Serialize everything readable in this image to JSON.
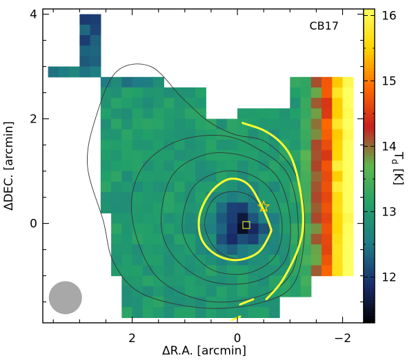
{
  "chart_data": {
    "type": "heatmap",
    "annotation": "CB17",
    "xlabel": "ΔR.A. [arcmin]",
    "ylabel": "ΔDEC. [arcmin]",
    "colorbar_label": "T_d [K]",
    "colorbar_label_main": "T",
    "colorbar_label_sub": "d",
    "colorbar_label_unit": "[K]",
    "xlim": [
      3.7,
      -2.4
    ],
    "ylim": [
      -1.9,
      4.1
    ],
    "x_ticks": [
      {
        "value": 2,
        "label": "2"
      },
      {
        "value": 0,
        "label": "0"
      },
      {
        "value": -2,
        "label": "−2"
      }
    ],
    "y_ticks": [
      {
        "value": 4,
        "label": "4"
      },
      {
        "value": 2,
        "label": "2"
      },
      {
        "value": 0,
        "label": "0"
      }
    ],
    "colorbar": {
      "range": [
        11.3,
        16.1
      ],
      "ticks": [
        {
          "value": 16,
          "label": "16"
        },
        {
          "value": 15,
          "label": "15"
        },
        {
          "value": 14,
          "label": "14"
        },
        {
          "value": 13,
          "label": "13"
        },
        {
          "value": 12,
          "label": "12"
        }
      ],
      "colormap": [
        "#000000",
        "#1b2e6e",
        "#1f7a85",
        "#22a06a",
        "#5fb84e",
        "#c71f1f",
        "#ff6a00",
        "#ffd400",
        "#ffff60"
      ]
    },
    "markers": {
      "star": {
        "x": -0.5,
        "y": 0.32,
        "color": "#ffcc00"
      },
      "square": {
        "x": -0.17,
        "y": -0.03,
        "color": "#e0e020"
      }
    },
    "beam": {
      "x": 3.27,
      "y": -1.42,
      "color": "#a8a8a8"
    },
    "yellow_contours": [
      [
        [
          -0.62,
          -0.05
        ],
        [
          -0.45,
          0.35
        ],
        [
          -0.2,
          0.75
        ],
        [
          0.15,
          0.85
        ],
        [
          0.5,
          0.6
        ],
        [
          0.72,
          0.15
        ],
        [
          0.68,
          -0.3
        ],
        [
          0.4,
          -0.6
        ],
        [
          0.0,
          -0.7
        ],
        [
          -0.4,
          -0.55
        ],
        [
          -0.62,
          -0.2
        ]
      ],
      [
        [
          -0.1,
          1.92
        ],
        [
          -0.5,
          1.78
        ],
        [
          -0.82,
          1.55
        ],
        [
          -1.05,
          1.2
        ],
        [
          -1.2,
          0.6
        ],
        [
          -1.25,
          0.0
        ],
        [
          -1.15,
          -0.5
        ],
        [
          -0.85,
          -1.1
        ],
        [
          -0.55,
          -1.45
        ]
      ],
      [
        [
          -0.3,
          -1.45
        ],
        [
          -0.05,
          -1.55
        ]
      ],
      [
        [
          0.1,
          -1.85
        ],
        [
          -0.05,
          -1.78
        ]
      ]
    ],
    "grey_contours": [
      [
        [
          0.62,
          -0.05
        ],
        [
          0.5,
          0.4
        ],
        [
          0.2,
          0.6
        ],
        [
          -0.2,
          0.55
        ],
        [
          -0.5,
          0.25
        ],
        [
          -0.6,
          -0.15
        ],
        [
          -0.4,
          -0.55
        ],
        [
          0.0,
          -0.68
        ],
        [
          0.4,
          -0.5
        ]
      ],
      [
        [
          1.05,
          0.0
        ],
        [
          0.85,
          0.68
        ],
        [
          0.35,
          0.98
        ],
        [
          -0.2,
          0.95
        ],
        [
          -0.65,
          0.62
        ],
        [
          -0.85,
          0.0
        ],
        [
          -0.72,
          -0.62
        ],
        [
          -0.2,
          -0.95
        ],
        [
          0.45,
          -0.9
        ],
        [
          0.9,
          -0.5
        ]
      ],
      [
        [
          1.45,
          0.0
        ],
        [
          1.25,
          0.9
        ],
        [
          0.6,
          1.32
        ],
        [
          -0.15,
          1.28
        ],
        [
          -0.75,
          0.9
        ],
        [
          -1.0,
          0.1
        ],
        [
          -0.9,
          -0.72
        ],
        [
          -0.3,
          -1.12
        ],
        [
          0.55,
          -1.1
        ],
        [
          1.2,
          -0.65
        ]
      ],
      [
        [
          2.0,
          0.1
        ],
        [
          1.85,
          1.0
        ],
        [
          1.2,
          1.55
        ],
        [
          0.3,
          1.68
        ],
        [
          -0.4,
          1.42
        ],
        [
          -0.95,
          0.95
        ],
        [
          -1.15,
          0.1
        ],
        [
          -1.05,
          -0.9
        ],
        [
          -0.45,
          -1.38
        ],
        [
          0.6,
          -1.48
        ],
        [
          1.55,
          -1.0
        ]
      ],
      [
        [
          2.55,
          0.05
        ],
        [
          2.85,
          1.1
        ],
        [
          2.7,
          2.0
        ],
        [
          2.3,
          2.9
        ],
        [
          1.65,
          3.0
        ],
        [
          1.05,
          2.4
        ],
        [
          0.55,
          1.95
        ],
        [
          0.05,
          1.7
        ],
        [
          -0.55,
          1.55
        ],
        [
          -1.1,
          0.95
        ],
        [
          -1.28,
          0.0
        ],
        [
          -1.1,
          -1.1
        ],
        [
          -0.5,
          -1.5
        ],
        [
          0.6,
          -1.62
        ],
        [
          1.8,
          -1.35
        ],
        [
          2.35,
          -0.75
        ]
      ]
    ]
  }
}
